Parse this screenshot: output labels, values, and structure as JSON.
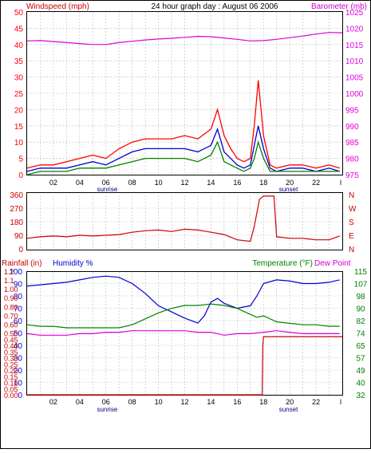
{
  "header": {
    "left_label": "Windspeed (mph)",
    "title": "24 hour graph day : August 06 2006",
    "right_label": "Barometer (mb)"
  },
  "colors": {
    "wind": "#ff0000",
    "wind_avg": "#0000cc",
    "wind_gust2": "#008000",
    "barometer": "#dd00dd",
    "direction": "#cc0000",
    "rain": "#cc0000",
    "humidity": "#0000cc",
    "temperature": "#008000",
    "dew_point": "#dd00dd",
    "grid": "#bbbbbb",
    "frame": "#000000"
  },
  "time_axis": {
    "ticks": [
      "02",
      "04",
      "06",
      "08",
      "10",
      "12",
      "14",
      "16",
      "18",
      "20",
      "22"
    ],
    "end_tick": "l",
    "sunrise_label": "sunrise",
    "sunset_label": "sunset"
  },
  "direction_panel": {
    "left_ticks": [
      "360",
      "270",
      "180",
      "90",
      "0"
    ],
    "right_ticks": [
      "N",
      "W",
      "S",
      "E",
      "N"
    ]
  },
  "bottom_panel": {
    "rain_label": "Rainfall (in)",
    "humidity_label": "Humidity %",
    "temperature_label": "Temperature (°F)",
    "dew_label": "Dew Point"
  },
  "chart_data": [
    {
      "type": "line",
      "panel": "wind_barometer",
      "ylim_left": [
        0,
        50
      ],
      "ylim_right": [
        975,
        1025
      ],
      "left_ticks": [
        "0",
        "5",
        "10",
        "15",
        "20",
        "25",
        "30",
        "35",
        "40",
        "45",
        "50"
      ],
      "right_ticks": [
        "975",
        "980",
        "985",
        "990",
        "995",
        "1000",
        "1005",
        "1010",
        "1015",
        "1020",
        "1025"
      ],
      "x_hours": [
        0,
        24
      ],
      "series": [
        {
          "key": "wind_gust",
          "axis": "left",
          "x": [
            0,
            1,
            2,
            3,
            4,
            5,
            6,
            7,
            8,
            9,
            10,
            11,
            12,
            13,
            14,
            14.5,
            15,
            15.5,
            16,
            16.5,
            17,
            17.3,
            17.6,
            18,
            18.5,
            19,
            20,
            21,
            22,
            23,
            23.8
          ],
          "values": [
            2,
            3,
            3,
            4,
            5,
            6,
            5,
            8,
            10,
            11,
            11,
            11,
            12,
            11,
            14,
            20,
            12,
            8,
            5,
            4,
            5,
            15,
            29,
            12,
            3,
            2,
            3,
            3,
            2,
            3,
            2
          ]
        },
        {
          "key": "wind_avg",
          "axis": "left",
          "x": [
            0,
            1,
            2,
            3,
            4,
            5,
            6,
            7,
            8,
            9,
            10,
            11,
            12,
            13,
            14,
            14.5,
            15,
            15.5,
            16,
            16.5,
            17,
            17.3,
            17.6,
            18,
            18.5,
            19,
            20,
            21,
            22,
            23,
            23.8
          ],
          "values": [
            1,
            2,
            2,
            2,
            3,
            4,
            3,
            5,
            7,
            8,
            8,
            8,
            8,
            7,
            9,
            14,
            7,
            5,
            3,
            2,
            3,
            9,
            15,
            8,
            2,
            1,
            2,
            2,
            1,
            2,
            1
          ]
        },
        {
          "key": "wind_gust2",
          "axis": "left",
          "x": [
            0,
            1,
            2,
            3,
            4,
            5,
            6,
            7,
            8,
            9,
            10,
            11,
            12,
            13,
            14,
            14.5,
            15,
            15.5,
            16,
            16.5,
            17,
            17.3,
            17.6,
            18,
            18.5,
            19,
            20,
            21,
            22,
            23,
            23.8
          ],
          "values": [
            0,
            1,
            1,
            1,
            2,
            2,
            2,
            3,
            4,
            5,
            5,
            5,
            5,
            4,
            6,
            10,
            4,
            3,
            2,
            1,
            2,
            5,
            10,
            5,
            1,
            1,
            1,
            1,
            1,
            1,
            1
          ]
        },
        {
          "key": "barometer",
          "axis": "right",
          "x": [
            0,
            1,
            2,
            3,
            4,
            5,
            6,
            7,
            8,
            9,
            10,
            11,
            12,
            13,
            14,
            15,
            16,
            17,
            18,
            19,
            20,
            21,
            22,
            23,
            24
          ],
          "values": [
            1016.1,
            1016.2,
            1015.9,
            1015.6,
            1015.3,
            1015.0,
            1015.0,
            1015.6,
            1016.0,
            1016.4,
            1016.7,
            1016.9,
            1017.2,
            1017.5,
            1017.4,
            1017.0,
            1016.6,
            1016.1,
            1016.2,
            1016.6,
            1017.1,
            1017.6,
            1018.2,
            1018.7,
            1018.6
          ]
        }
      ]
    },
    {
      "type": "line",
      "panel": "wind_direction",
      "ylim": [
        0,
        360
      ],
      "x": [
        0,
        1,
        2,
        3,
        4,
        5,
        6,
        7,
        8,
        9,
        10,
        11,
        12,
        13,
        14,
        15,
        16,
        17,
        17.3,
        17.7,
        18,
        18.3,
        18.8,
        19,
        20,
        21,
        22,
        23,
        23.8
      ],
      "values": [
        70,
        80,
        85,
        80,
        90,
        85,
        90,
        95,
        110,
        120,
        125,
        115,
        130,
        125,
        110,
        95,
        60,
        50,
        150,
        330,
        350,
        350,
        350,
        80,
        70,
        70,
        60,
        60,
        85
      ],
      "name": "Wind direction"
    },
    {
      "type": "line",
      "panel": "rain_humidity_temperature",
      "rain_ticks": [
        "0.00",
        "0.05",
        "0.10",
        "0.15",
        "0.20",
        "0.25",
        "0.30",
        "0.35",
        "0.40",
        "0.45",
        "0.50",
        "0.60",
        "0.70",
        "0.80",
        "0.90",
        "1.00",
        "1.1",
        "1.2"
      ],
      "humidity_ticks": [
        "0",
        "10",
        "20",
        "30",
        "40",
        "50",
        "60",
        "70",
        "80",
        "90",
        "100"
      ],
      "temperature_ticks": [
        "32",
        "40",
        "49",
        "57",
        "65",
        "74",
        "82",
        "90",
        "98",
        "107",
        "115"
      ],
      "series": [
        {
          "key": "humidity",
          "unit": "%",
          "x": [
            0,
            1,
            2,
            3,
            4,
            5,
            6,
            7,
            8,
            9,
            10,
            11,
            12,
            13,
            13.5,
            14,
            14.5,
            15,
            16,
            17,
            17.5,
            18,
            19,
            20,
            21,
            22,
            23,
            23.8
          ],
          "values": [
            88,
            89,
            90,
            91,
            93,
            95,
            96,
            95,
            90,
            82,
            72,
            67,
            62,
            58,
            64,
            75,
            78,
            74,
            70,
            72,
            80,
            90,
            93,
            92,
            90,
            90,
            91,
            93
          ]
        },
        {
          "key": "temperature",
          "unit": "F",
          "x": [
            0,
            1,
            2,
            3,
            4,
            5,
            6,
            7,
            8,
            9,
            10,
            11,
            12,
            13,
            14,
            15,
            16,
            17,
            17.5,
            18,
            19,
            20,
            21,
            22,
            23,
            23.8
          ],
          "values": [
            79,
            78,
            78,
            77,
            77,
            77,
            77,
            77,
            79,
            83,
            87,
            90,
            92,
            92,
            93,
            92,
            90,
            86,
            84,
            85,
            81,
            80,
            79,
            79,
            78,
            78
          ]
        },
        {
          "key": "dew_point",
          "unit": "F",
          "x": [
            0,
            1,
            2,
            3,
            4,
            5,
            6,
            7,
            8,
            9,
            10,
            11,
            12,
            13,
            14,
            15,
            16,
            17,
            18,
            19,
            20,
            21,
            22,
            23,
            23.8
          ],
          "values": [
            73,
            72,
            72,
            72,
            73,
            73,
            74,
            74,
            75,
            75,
            75,
            75,
            75,
            74,
            74,
            72,
            73,
            73,
            74,
            75,
            74,
            73,
            73,
            73,
            73
          ]
        },
        {
          "key": "rainfall",
          "unit": "in",
          "x": [
            0,
            17.9,
            17.95,
            18.0,
            24
          ],
          "values": [
            0,
            0,
            0.4,
            0.47,
            0.47
          ]
        }
      ]
    }
  ]
}
